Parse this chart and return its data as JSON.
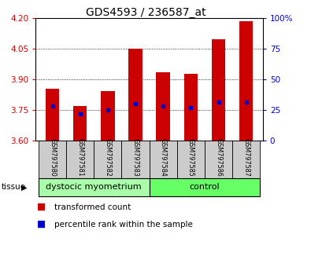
{
  "title": "GDS4593 / 236587_at",
  "samples": [
    "GSM797580",
    "GSM797581",
    "GSM797582",
    "GSM797583",
    "GSM797584",
    "GSM797585",
    "GSM797586",
    "GSM797587"
  ],
  "transformed_counts": [
    3.855,
    3.77,
    3.84,
    4.05,
    3.935,
    3.925,
    4.095,
    4.185
  ],
  "percentile_ranks": [
    28,
    22,
    25,
    30,
    28,
    27,
    31,
    31
  ],
  "ylim_left": [
    3.6,
    4.2
  ],
  "ylim_right": [
    0,
    100
  ],
  "yticks_left": [
    3.6,
    3.75,
    3.9,
    4.05,
    4.2
  ],
  "yticks_right": [
    0,
    25,
    50,
    75,
    100
  ],
  "groups": [
    {
      "label": "dystocic myometrium",
      "indices": [
        0,
        1,
        2,
        3
      ],
      "color": "#aaffaa"
    },
    {
      "label": "control",
      "indices": [
        4,
        5,
        6,
        7
      ],
      "color": "#66ff66"
    }
  ],
  "bar_color": "#cc0000",
  "blue_color": "#0000cc",
  "bar_width": 0.5,
  "baseline": 3.6,
  "tick_label_color_left": "#cc0000",
  "tick_label_color_right": "#0000cc",
  "legend_items": [
    {
      "label": "transformed count",
      "color": "#cc0000"
    },
    {
      "label": "percentile rank within the sample",
      "color": "#0000cc"
    }
  ]
}
